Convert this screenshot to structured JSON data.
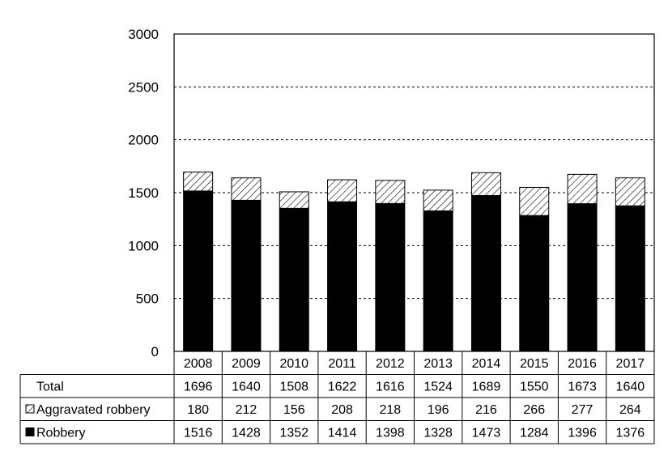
{
  "chart_data": {
    "type": "bar",
    "stacked": true,
    "categories": [
      "2008",
      "2009",
      "2010",
      "2011",
      "2012",
      "2013",
      "2014",
      "2015",
      "2016",
      "2017"
    ],
    "ylim": [
      0,
      3000
    ],
    "yticks": [
      "0",
      "500",
      "1000",
      "1500",
      "2000",
      "2500",
      "3000"
    ],
    "grid": "horizontal dashed",
    "series": [
      {
        "name": "Robbery",
        "pattern": "solid",
        "color": "#000000",
        "values": [
          1516,
          1428,
          1352,
          1414,
          1398,
          1328,
          1473,
          1284,
          1396,
          1376
        ]
      },
      {
        "name": "Aggravated robbery",
        "pattern": "hatched",
        "color": "#000000",
        "values": [
          180,
          212,
          156,
          208,
          218,
          196,
          216,
          266,
          277,
          264
        ]
      }
    ],
    "table": {
      "rows": [
        {
          "label": "Total",
          "key": "total",
          "values": [
            "1696",
            "1640",
            "1508",
            "1622",
            "1616",
            "1524",
            "1689",
            "1550",
            "1673",
            "1640"
          ]
        },
        {
          "label": "Aggravated robbery",
          "key": "aggravated",
          "values": [
            "180",
            "212",
            "156",
            "208",
            "218",
            "196",
            "216",
            "266",
            "277",
            "264"
          ]
        },
        {
          "label": "Robbery",
          "key": "robbery",
          "values": [
            "1516",
            "1428",
            "1352",
            "1414",
            "1398",
            "1328",
            "1473",
            "1284",
            "1396",
            "1376"
          ]
        }
      ]
    }
  }
}
